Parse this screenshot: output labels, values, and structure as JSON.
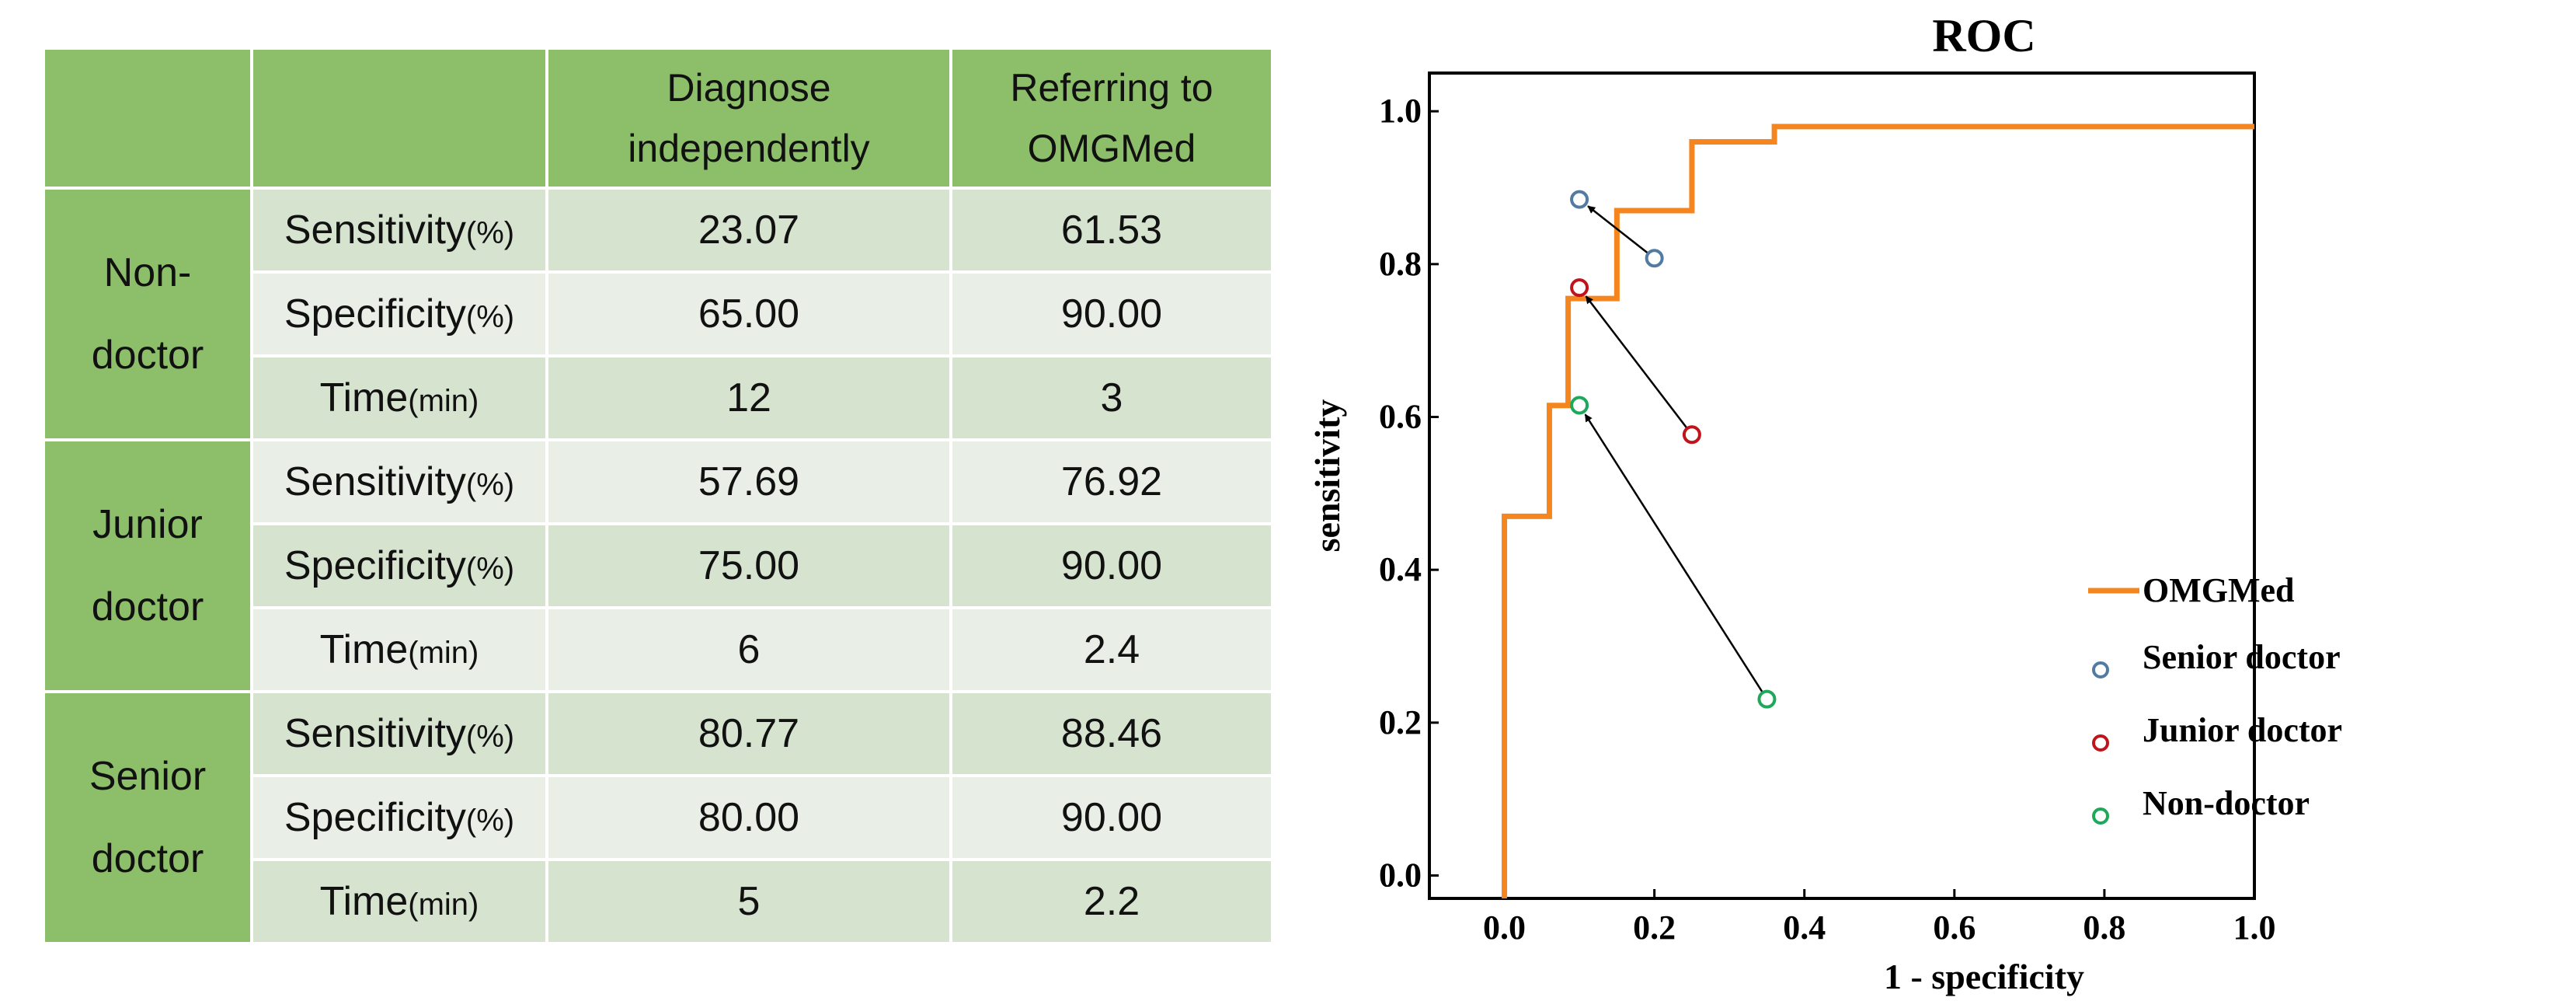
{
  "table": {
    "headers": [
      "",
      "",
      "Diagnose\nindependently",
      "Referring to\nOMGMed"
    ],
    "groups": [
      {
        "name": "Non-\ndoctor",
        "rows": [
          {
            "metric": "Sensitivity",
            "unit": "(%)",
            "independent": "23.07",
            "omgmed": "61.53"
          },
          {
            "metric": "Specificity",
            "unit": "(%)",
            "independent": "65.00",
            "omgmed": "90.00"
          },
          {
            "metric": "Time",
            "unit": "(min)",
            "independent": "12",
            "omgmed": "3"
          }
        ]
      },
      {
        "name": "Junior\ndoctor",
        "rows": [
          {
            "metric": "Sensitivity",
            "unit": "(%)",
            "independent": "57.69",
            "omgmed": "76.92"
          },
          {
            "metric": "Specificity",
            "unit": "(%)",
            "independent": "75.00",
            "omgmed": "90.00"
          },
          {
            "metric": "Time",
            "unit": "(min)",
            "independent": "6",
            "omgmed": "2.4"
          }
        ]
      },
      {
        "name": "Senior\ndoctor",
        "rows": [
          {
            "metric": "Sensitivity",
            "unit": "(%)",
            "independent": "80.77",
            "omgmed": "88.46"
          },
          {
            "metric": "Specificity",
            "unit": "(%)",
            "independent": "80.00",
            "omgmed": "90.00"
          },
          {
            "metric": "Time",
            "unit": "(min)",
            "independent": "5",
            "omgmed": "2.2"
          }
        ]
      }
    ]
  },
  "chart_data": {
    "type": "line",
    "title": "ROC",
    "xlabel": "1 - specificity",
    "ylabel": "sensitivity",
    "xlim": [
      -0.1,
      1.0
    ],
    "ylim": [
      -0.03,
      1.05
    ],
    "xticks": [
      0.0,
      0.2,
      0.4,
      0.6,
      0.8,
      1.0
    ],
    "xtick_labels": [
      "0.0",
      "0.2",
      "0.4",
      "0.6",
      "0.8",
      "1.0"
    ],
    "yticks": [
      0.0,
      0.2,
      0.4,
      0.6,
      0.8,
      1.0
    ],
    "ytick_labels": [
      "0.0",
      "0.2",
      "0.4",
      "0.6",
      "0.8",
      "1.0"
    ],
    "legend_position": "lower-right",
    "roc_series": {
      "name": "OMGMed",
      "color": "#f5861f",
      "x": [
        0.0,
        0.0,
        0.06,
        0.06,
        0.085,
        0.085,
        0.15,
        0.15,
        0.25,
        0.25,
        0.36,
        0.36,
        1.0
      ],
      "y": [
        -0.03,
        0.47,
        0.47,
        0.615,
        0.615,
        0.755,
        0.755,
        0.87,
        0.87,
        0.96,
        0.96,
        0.98,
        0.98
      ]
    },
    "point_series": [
      {
        "name": "Senior doctor",
        "color": "#527aa3",
        "independent": [
          0.2,
          0.8077
        ],
        "omgmed": [
          0.1,
          0.8846
        ]
      },
      {
        "name": "Junior doctor",
        "color": "#c0141c",
        "independent": [
          0.25,
          0.5769
        ],
        "omgmed": [
          0.1,
          0.7692
        ]
      },
      {
        "name": "Non-doctor",
        "color": "#1ea85a",
        "independent": [
          0.35,
          0.2307
        ],
        "omgmed": [
          0.1,
          0.6153
        ]
      }
    ]
  }
}
